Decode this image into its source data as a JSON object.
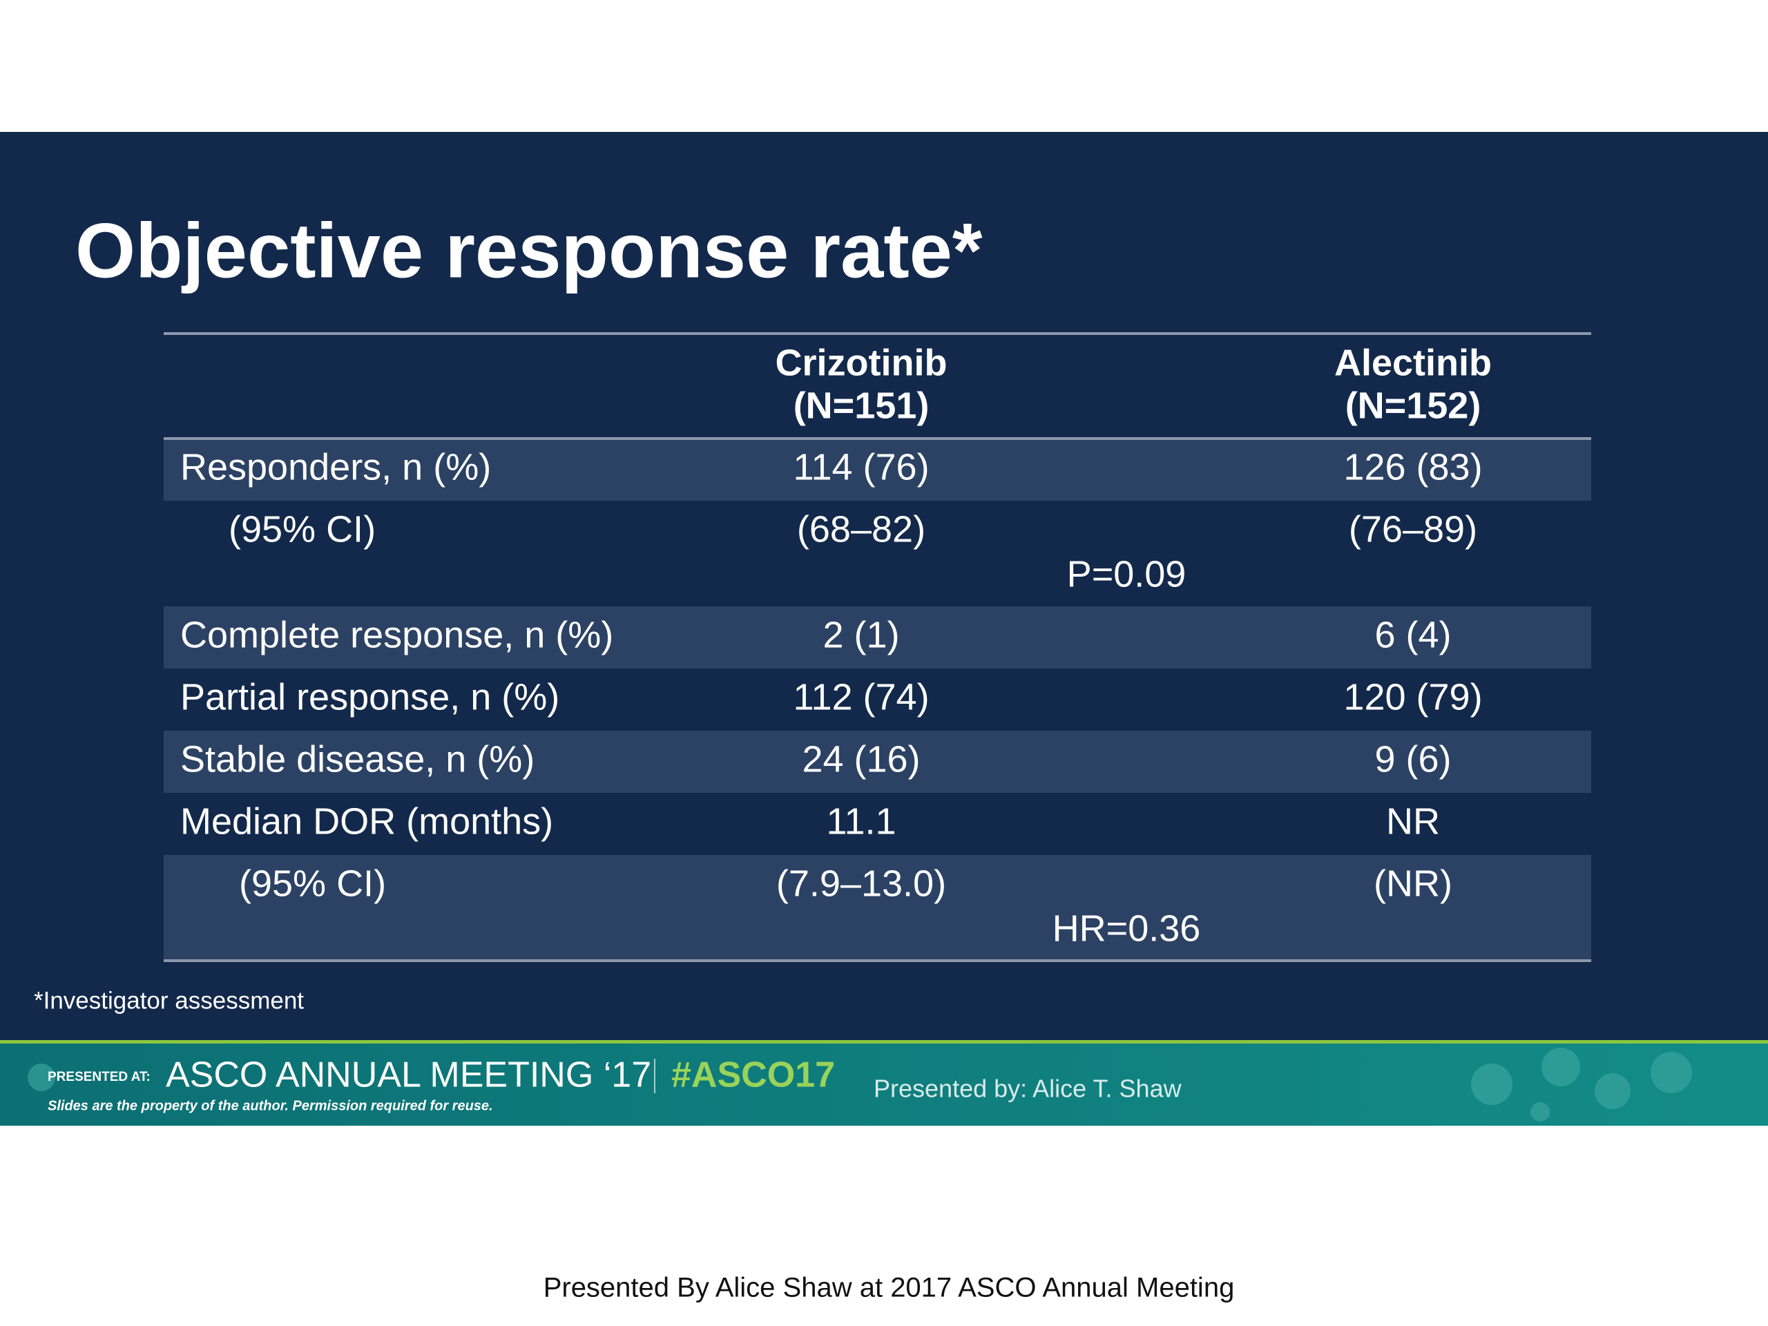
{
  "slide": {
    "title": "Objective response rate*",
    "table": {
      "columns": [
        {
          "name": "Crizotinib",
          "n": "(N=151)"
        },
        {
          "name": "Alectinib",
          "n": "(N=152)"
        }
      ],
      "rows": [
        {
          "label": "Responders, n (%)",
          "values": [
            "114 (76)",
            "126 (83)"
          ]
        },
        {
          "label": "(95% CI)",
          "values": [
            "(68–82)",
            "(76–89)"
          ],
          "comparison": "P=0.09"
        },
        {
          "label": "Complete response, n (%)",
          "values": [
            "2 (1)",
            "6 (4)"
          ]
        },
        {
          "label": "Partial response, n (%)",
          "values": [
            "112 (74)",
            "120 (79)"
          ]
        },
        {
          "label": "Stable disease, n (%)",
          "values": [
            "24 (16)",
            "9 (6)"
          ]
        },
        {
          "label": "Median DOR (months)",
          "values": [
            "11.1",
            "NR"
          ]
        },
        {
          "label": "(95% CI)",
          "values": [
            "(7.9–13.0)",
            "(NR)"
          ],
          "comparison": "HR=0.36"
        }
      ]
    },
    "footnote": "*Investigator assessment",
    "footer": {
      "presented_at": "PRESENTED AT:",
      "meeting": "ASCO ANNUAL MEETING ‘17",
      "hashtag": "#ASCO17",
      "disclaimer": "Slides are the property of the author. Permission required for reuse.",
      "presented_by": "Presented by:  Alice T. Shaw"
    }
  },
  "caption": "Presented By Alice Shaw at 2017 ASCO Annual Meeting"
}
